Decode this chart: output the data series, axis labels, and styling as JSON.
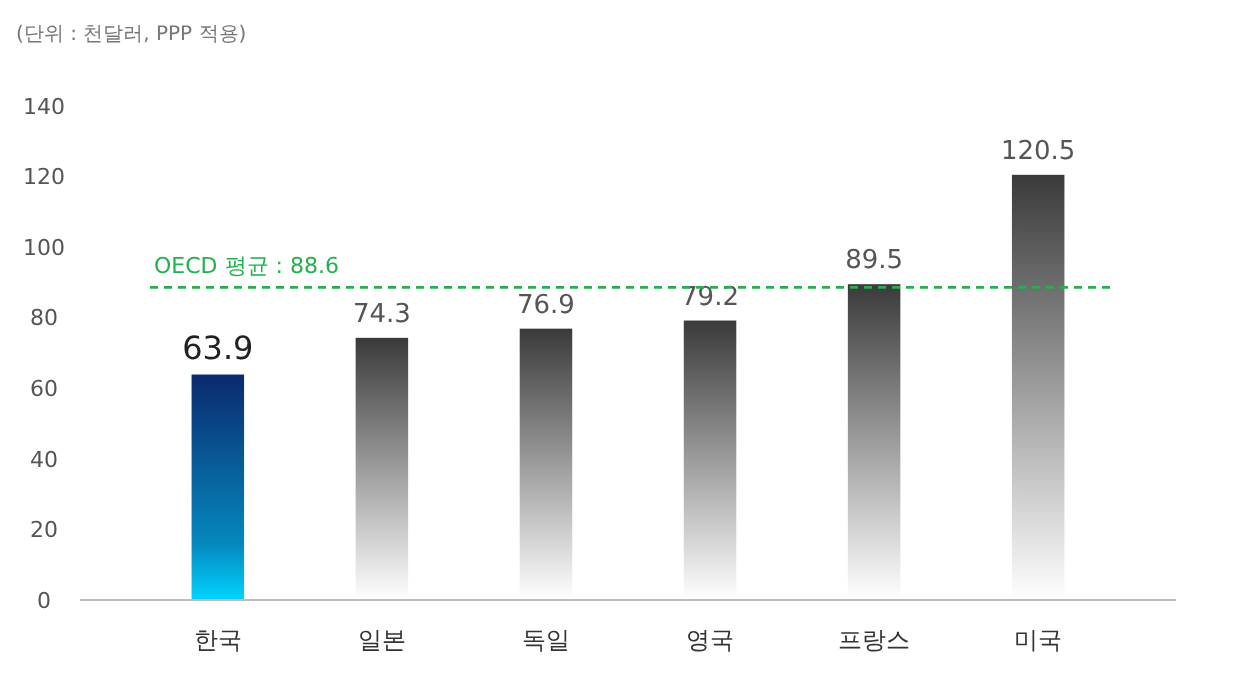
{
  "chart_data": {
    "type": "bar",
    "subtitle": "(단위 : 천달러, PPP 적용)",
    "categories": [
      "한국",
      "일본",
      "독일",
      "영국",
      "프랑스",
      "미국"
    ],
    "values": [
      63.9,
      74.3,
      76.9,
      79.2,
      89.5,
      120.5
    ],
    "colors": [
      "#0a2a6e",
      "#3a3a3a",
      "#3a3a3a",
      "#3a3a3a",
      "#3a3a3a",
      "#3a3a3a"
    ],
    "ylim": [
      0,
      140
    ],
    "yticks": [
      0,
      20,
      40,
      60,
      80,
      100,
      120,
      140
    ],
    "ref_lines": [
      {
        "axis": "y",
        "value": 88.6,
        "label": "OECD 평균 : 88.6",
        "color": "#22b14c",
        "line_style": "dashed"
      }
    ],
    "data_labels": true
  }
}
